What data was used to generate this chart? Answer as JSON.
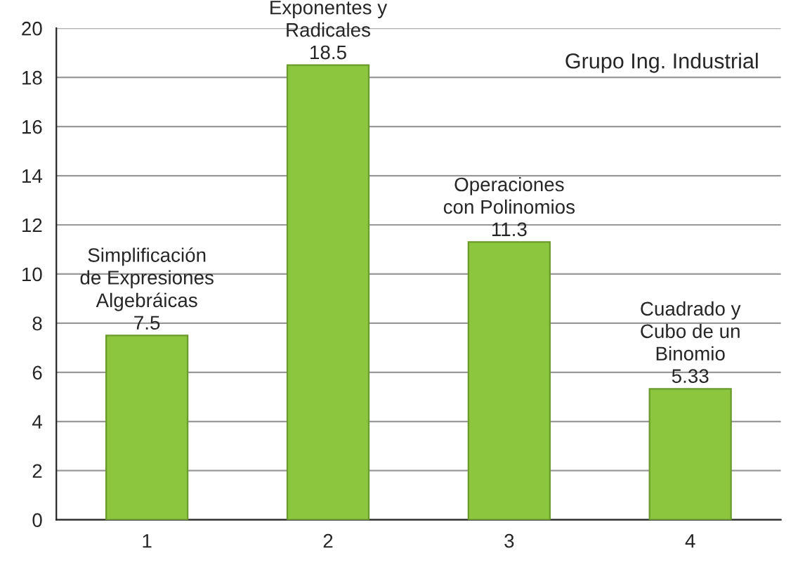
{
  "chart_data": {
    "type": "bar",
    "categories": [
      "1",
      "2",
      "3",
      "4"
    ],
    "values": [
      7.5,
      18.5,
      11.3,
      5.33
    ],
    "value_labels": [
      "Simplificación\nde Expresiones\nAlgebráicas\n7.5",
      "Exponentes y\nRadicales\n18.5",
      "Operaciones\ncon Polinomios\n11.3",
      "Cuadrado y\nCubo de un\nBinomio\n5.33"
    ],
    "color": "#8cc63f",
    "ylim": [
      0,
      20
    ],
    "yticks": [
      0,
      2,
      4,
      6,
      8,
      10,
      12,
      14,
      16,
      18,
      20
    ],
    "grid": "y",
    "annotations": [
      "Grupo Ing. Industrial"
    ]
  }
}
